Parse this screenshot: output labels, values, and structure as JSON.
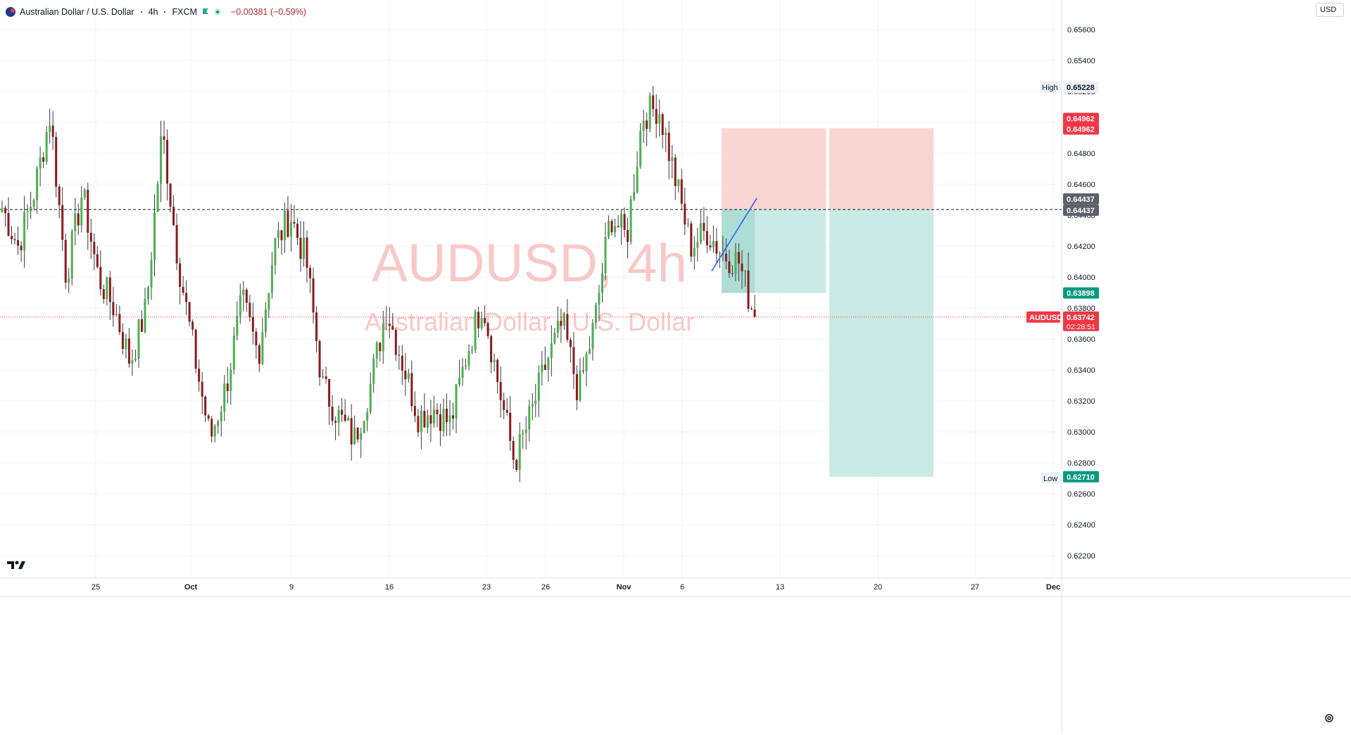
{
  "header": {
    "title": "Australian Dollar / U.S. Dollar",
    "interval": "4h",
    "exchange": "FXCM",
    "change": "−0.00381 (−0.59%)"
  },
  "currency_button": "USD",
  "watermark": {
    "symbol_line": "AUDUSD, 4h",
    "name_line": "Australian Dollar / U.S. Dollar"
  },
  "colors": {
    "up": "#4caf50",
    "down": "#8b1a1a",
    "stop_zone": "#f9d5d3",
    "target_zone": "#c9eae5",
    "trendline": "#2962ff",
    "current_price": "#f23645"
  },
  "chart_data": {
    "type": "candlestick",
    "symbol": "AUDUSD",
    "timeframe": "4h",
    "ylim": [
      0.621,
      0.657
    ],
    "y_ticks": [
      "0.62200",
      "0.62400",
      "0.62600",
      "0.62800",
      "0.63000",
      "0.63200",
      "0.63400",
      "0.63600",
      "0.63800",
      "0.64000",
      "0.64200",
      "0.64400",
      "0.64600",
      "0.64800",
      "0.65000",
      "0.65200",
      "0.65400",
      "0.65600"
    ],
    "x_ticks": [
      "25",
      "Oct",
      "9",
      "16",
      "23",
      "26",
      "Nov",
      "6",
      "13",
      "20",
      "27",
      "Dec"
    ],
    "waypoints": [
      [
        0.6442,
        0.6445
      ],
      [
        0.645,
        0.642
      ],
      [
        0.6465,
        0.6455
      ],
      [
        0.651,
        0.6505
      ],
      [
        0.643,
        0.64
      ],
      [
        0.6465,
        0.6455
      ],
      [
        0.642,
        0.64
      ],
      [
        0.6395,
        0.638
      ],
      [
        0.6355,
        0.6345
      ],
      [
        0.6395,
        0.638
      ],
      [
        0.65,
        0.6495
      ],
      [
        0.642,
        0.641
      ],
      [
        0.636,
        0.635
      ],
      [
        0.629,
        0.6295
      ],
      [
        0.634,
        0.633
      ],
      [
        0.639,
        0.6385
      ],
      [
        0.636,
        0.635
      ],
      [
        0.643,
        0.642
      ],
      [
        0.6445,
        0.644
      ],
      [
        0.642,
        0.641
      ],
      [
        0.634,
        0.633
      ],
      [
        0.632,
        0.631
      ],
      [
        0.629,
        0.6295
      ],
      [
        0.634,
        0.633
      ],
      [
        0.639,
        0.638
      ],
      [
        0.635,
        0.6345
      ],
      [
        0.6305,
        0.631
      ],
      [
        0.632,
        0.6315
      ],
      [
        0.63,
        0.6305
      ],
      [
        0.636,
        0.635
      ],
      [
        0.639,
        0.6385
      ],
      [
        0.634,
        0.633
      ],
      [
        0.6275,
        0.628
      ],
      [
        0.6315,
        0.631
      ],
      [
        0.635,
        0.6345
      ],
      [
        0.6375,
        0.637
      ],
      [
        0.632,
        0.6325
      ],
      [
        0.638,
        0.637
      ],
      [
        0.645,
        0.644
      ],
      [
        0.642,
        0.6425
      ],
      [
        0.651,
        0.6505
      ],
      [
        0.6515,
        0.651
      ],
      [
        0.647,
        0.6465
      ],
      [
        0.6415,
        0.642
      ],
      [
        0.6435,
        0.643
      ],
      [
        0.641,
        0.6415
      ],
      [
        0.6405,
        0.641
      ],
      [
        0.6374,
        0.6374
      ]
    ],
    "current_price": "0.63742",
    "current_label": "AUDUSD",
    "countdown": "02:28:51",
    "high_label": "High",
    "high_value": "0.65228",
    "low_label": "Low",
    "low_value": "0.62701",
    "position": {
      "entry": "0.64437",
      "stop": "0.64962",
      "target_1": "0.63898",
      "target_2": "0.62710"
    },
    "trendline": {
      "from": 0.6404,
      "to": 0.6451
    }
  }
}
